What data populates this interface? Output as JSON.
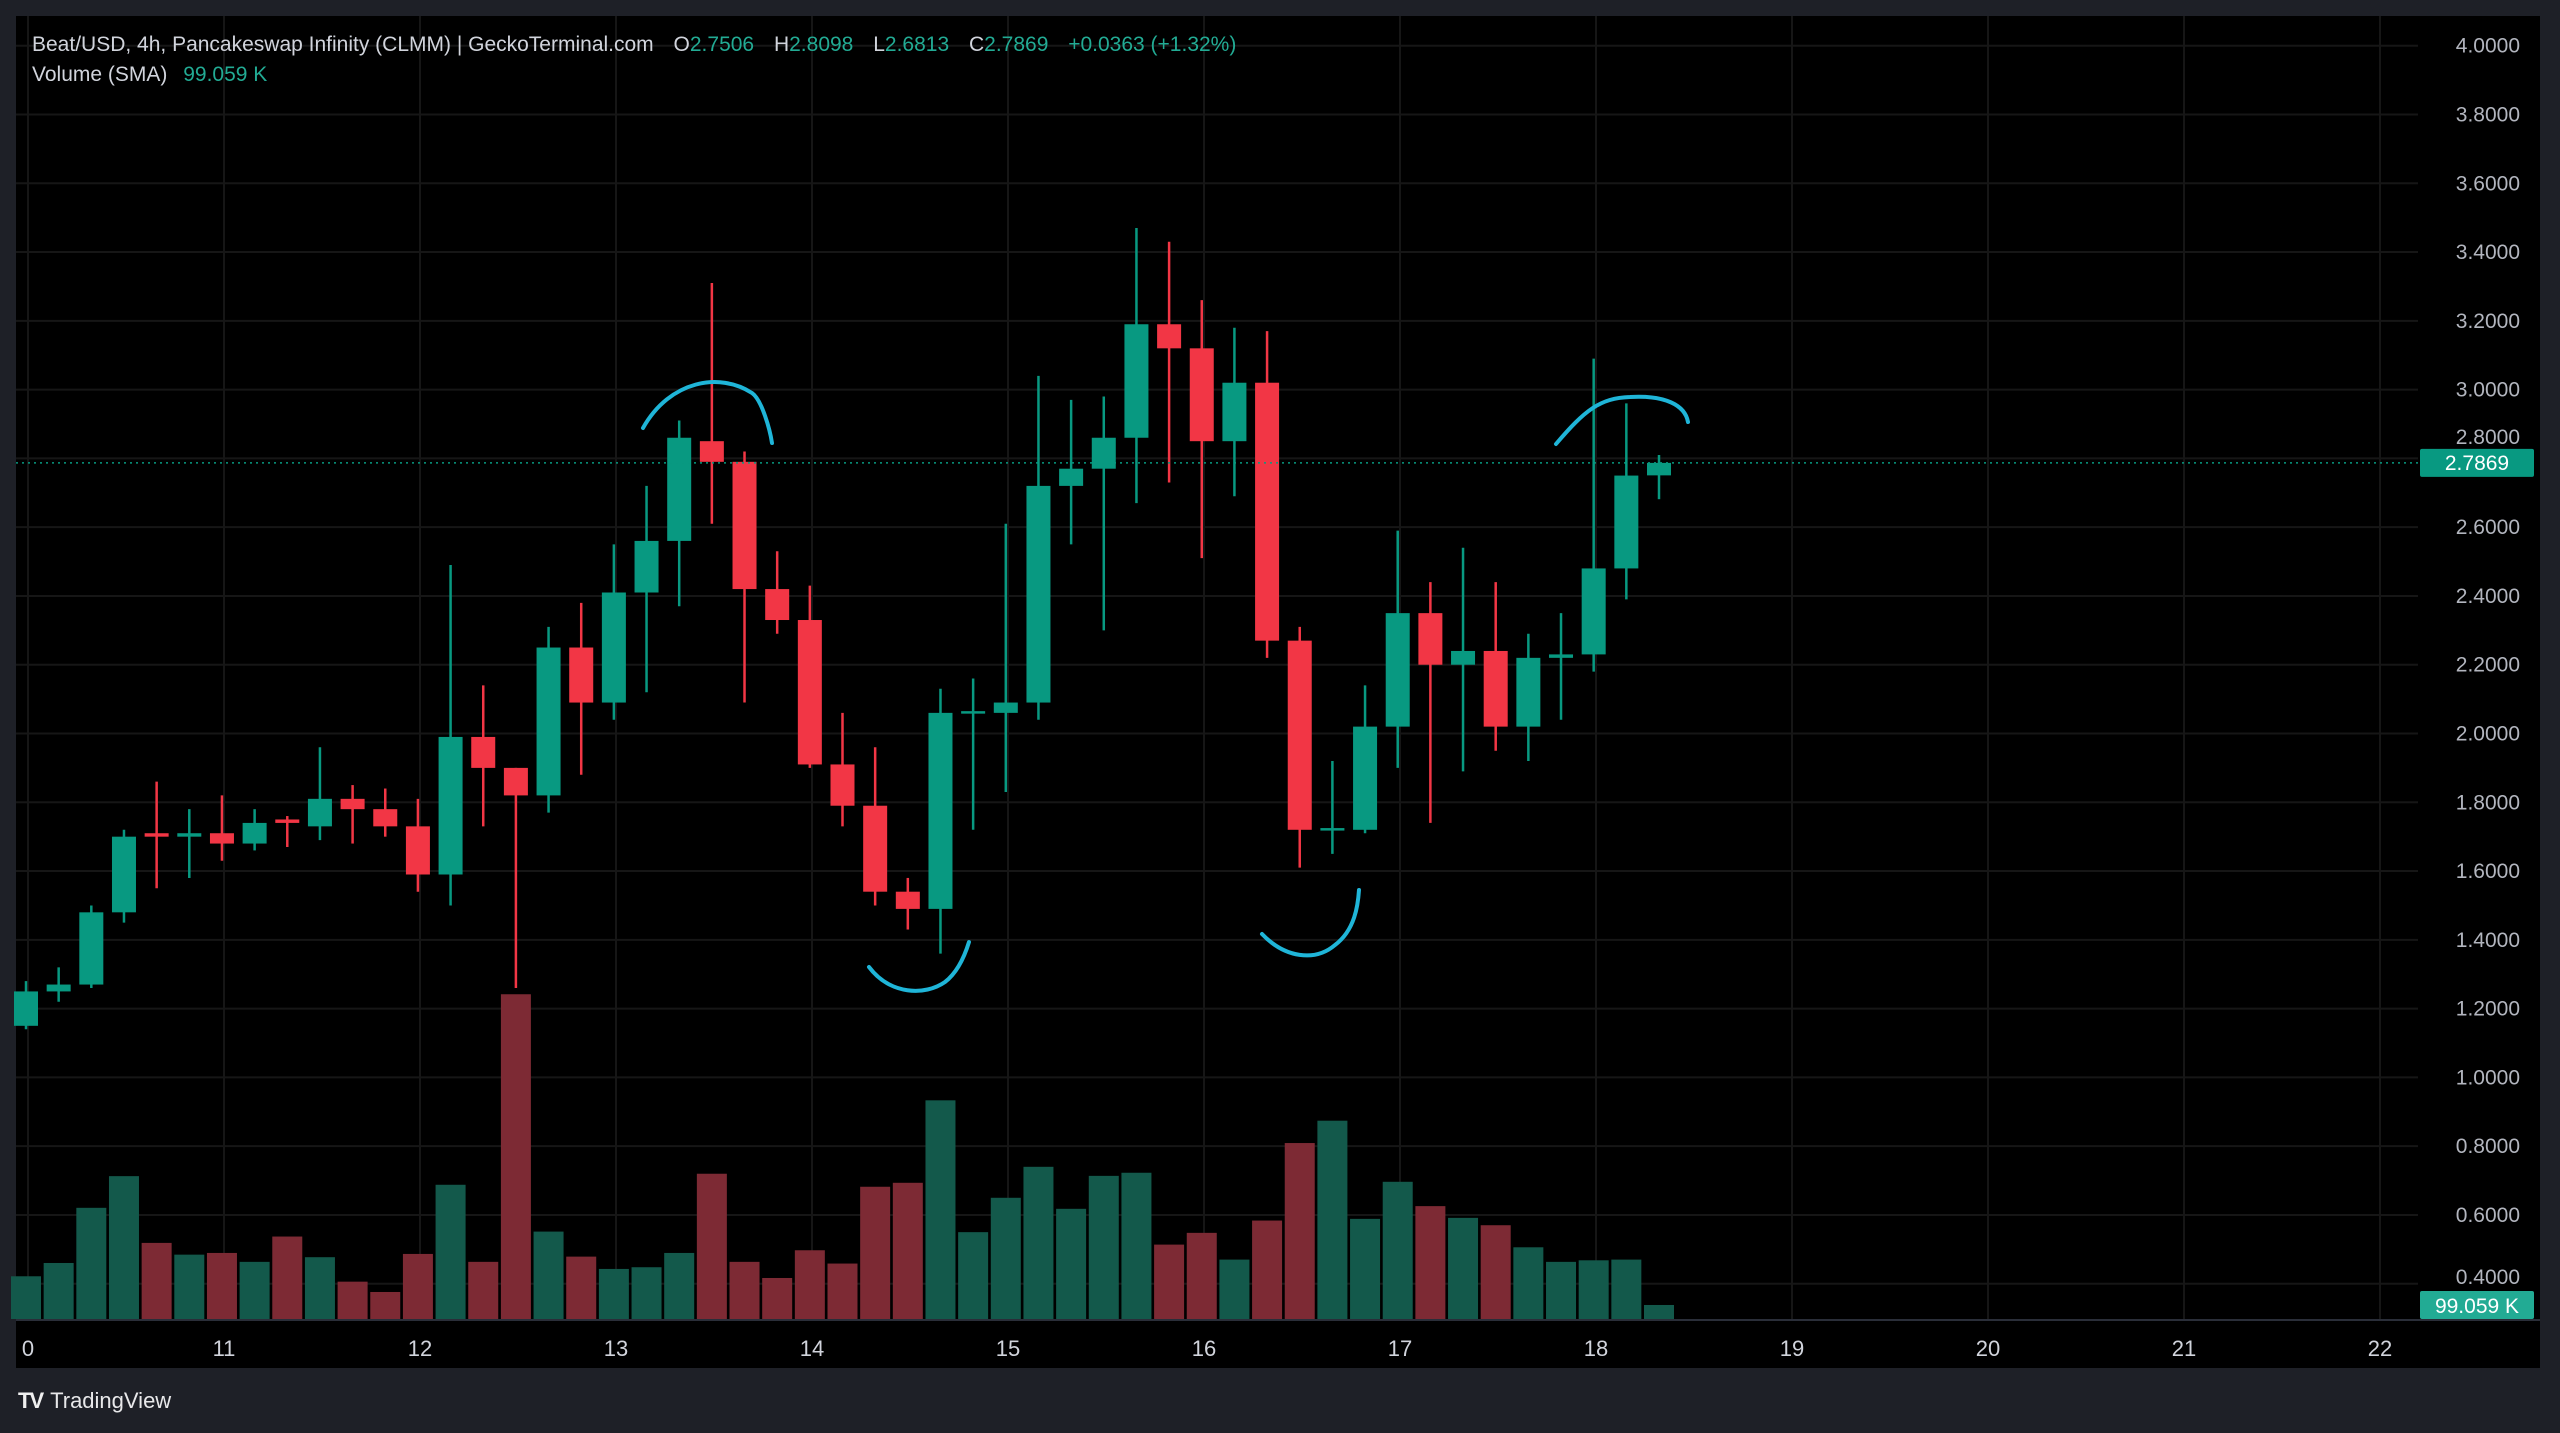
{
  "header": {
    "title": "Beat/USD, 4h, Pancakeswap Infinity (CLMM) | GeckoTerminal.com",
    "open_label": "O",
    "open": "2.7506",
    "high_label": "H",
    "high": "2.8098",
    "low_label": "L",
    "low": "2.6813",
    "close_label": "C",
    "close": "2.7869",
    "change": "+0.0363 (+1.32%)",
    "volume_label": "Volume (SMA)",
    "volume_value": "99.059 K"
  },
  "price_axis": {
    "current_price": "2.7869",
    "current_volume": "99.059 K"
  },
  "footer": {
    "brand": "TradingView",
    "logo_icon": "tradingview-logo-icon"
  },
  "colors": {
    "up": "#089981",
    "down": "#f23645",
    "volume_up": "#13594b",
    "volume_down": "#7d2a34",
    "annotation": "#1fb5d8",
    "background": "#000000"
  },
  "chart_data": {
    "type": "candlestick",
    "interval": "4h",
    "ylim": [
      0.4,
      4.0
    ],
    "y_ticks": [
      "4.0000",
      "3.8000",
      "3.6000",
      "3.4000",
      "3.2000",
      "3.0000",
      "2.8000",
      "2.6000",
      "2.4000",
      "2.2000",
      "2.0000",
      "1.8000",
      "1.6000",
      "1.4000",
      "1.2000",
      "1.0000",
      "0.8000",
      "0.6000",
      "0.4000"
    ],
    "x_ticks": [
      "0",
      "11",
      "12",
      "13",
      "14",
      "15",
      "16",
      "17",
      "18",
      "19",
      "20",
      "21",
      "22"
    ],
    "grid": true,
    "candles": [
      [
        1.15,
        1.28,
        1.14,
        1.25
      ],
      [
        1.25,
        1.32,
        1.22,
        1.27
      ],
      [
        1.27,
        1.5,
        1.26,
        1.48
      ],
      [
        1.48,
        1.72,
        1.45,
        1.7
      ],
      [
        1.71,
        1.86,
        1.55,
        1.7
      ],
      [
        1.7,
        1.78,
        1.58,
        1.71
      ],
      [
        1.71,
        1.82,
        1.63,
        1.68
      ],
      [
        1.68,
        1.78,
        1.66,
        1.74
      ],
      [
        1.75,
        1.76,
        1.67,
        1.74
      ],
      [
        1.73,
        1.96,
        1.69,
        1.81
      ],
      [
        1.81,
        1.85,
        1.68,
        1.78
      ],
      [
        1.78,
        1.84,
        1.7,
        1.73
      ],
      [
        1.73,
        1.81,
        1.54,
        1.59
      ],
      [
        1.59,
        2.49,
        1.5,
        1.99
      ],
      [
        1.99,
        2.14,
        1.73,
        1.9
      ],
      [
        1.9,
        1.9,
        1.26,
        1.82
      ],
      [
        1.82,
        2.31,
        1.77,
        2.25
      ],
      [
        2.25,
        2.38,
        1.88,
        2.09
      ],
      [
        2.09,
        2.55,
        2.04,
        2.41
      ],
      [
        2.41,
        2.72,
        2.12,
        2.56
      ],
      [
        2.56,
        2.91,
        2.37,
        2.86
      ],
      [
        2.85,
        3.31,
        2.61,
        2.79
      ],
      [
        2.79,
        2.82,
        2.09,
        2.42
      ],
      [
        2.42,
        2.53,
        2.29,
        2.33
      ],
      [
        2.33,
        2.43,
        1.9,
        1.91
      ],
      [
        1.91,
        2.06,
        1.73,
        1.79
      ],
      [
        1.79,
        1.96,
        1.5,
        1.54
      ],
      [
        1.54,
        1.58,
        1.43,
        1.49
      ],
      [
        1.49,
        2.13,
        1.36,
        2.06
      ],
      [
        2.06,
        2.16,
        1.72,
        2.065
      ],
      [
        2.06,
        2.61,
        1.83,
        2.09
      ],
      [
        2.09,
        3.04,
        2.04,
        2.72
      ],
      [
        2.72,
        2.97,
        2.55,
        2.77
      ],
      [
        2.77,
        2.98,
        2.3,
        2.86
      ],
      [
        2.86,
        3.47,
        2.67,
        3.19
      ],
      [
        3.19,
        3.43,
        2.73,
        3.12
      ],
      [
        3.12,
        3.26,
        2.51,
        2.85
      ],
      [
        2.85,
        3.18,
        2.69,
        3.02
      ],
      [
        3.02,
        3.17,
        2.22,
        2.27
      ],
      [
        2.27,
        2.31,
        1.61,
        1.72
      ],
      [
        1.72,
        1.92,
        1.65,
        1.725
      ],
      [
        1.72,
        2.14,
        1.71,
        2.02
      ],
      [
        2.02,
        2.59,
        1.9,
        2.35
      ],
      [
        2.35,
        2.44,
        1.74,
        2.2
      ],
      [
        2.2,
        2.54,
        1.89,
        2.24
      ],
      [
        2.24,
        2.44,
        1.95,
        2.02
      ],
      [
        2.02,
        2.29,
        1.92,
        2.22
      ],
      [
        2.22,
        2.35,
        2.04,
        2.23
      ],
      [
        2.23,
        3.09,
        2.18,
        2.48
      ],
      [
        2.48,
        2.96,
        2.39,
        2.75
      ],
      [
        2.7506,
        2.8098,
        2.6813,
        2.7869
      ]
    ],
    "candle_fields": [
      "open",
      "high",
      "low",
      "close"
    ],
    "volume_k": [
      302,
      396,
      786,
      1010,
      538,
      455,
      467,
      404,
      583,
      437,
      264,
      191,
      460,
      949,
      404,
      2296,
      618,
      441,
      354,
      366,
      467,
      1027,
      404,
      290,
      486,
      392,
      935,
      963,
      1546,
      614,
      857,
      1076,
      779,
      1012,
      1034,
      526,
      609,
      420,
      696,
      1244,
      1402,
      708,
      970,
      798,
      715,
      663,
      507,
      404,
      415,
      420,
      99.059
    ]
  }
}
